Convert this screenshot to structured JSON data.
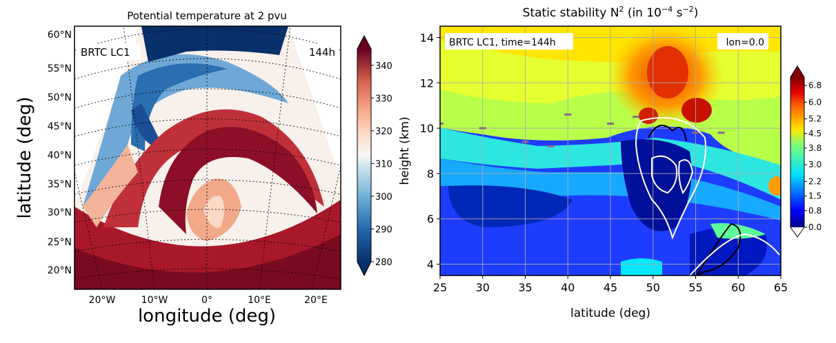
{
  "chart_data": [
    {
      "type": "heatmap",
      "title": "Potential temperature at 2 pvu",
      "xlabel": "longitude (deg)",
      "ylabel": "latitude (deg)",
      "x_ticks": [
        "20°W",
        "10°W",
        "0°",
        "10°E",
        "20°E"
      ],
      "y_ticks": [
        "20°N",
        "25°N",
        "30°N",
        "35°N",
        "40°N",
        "45°N",
        "50°N",
        "55°N",
        "60°N"
      ],
      "xlim": [
        -25,
        25
      ],
      "ylim": [
        17,
        62
      ],
      "annotations": [
        "BRTC LC1",
        "144h"
      ],
      "colorbar": {
        "ticks": [
          "280",
          "290",
          "300",
          "310",
          "320",
          "330",
          "340"
        ],
        "range": [
          280,
          345
        ],
        "extend": "both",
        "colormap": "RdBu_r"
      },
      "projection": "conic, dotted graticule"
    },
    {
      "type": "heatmap",
      "title_main": "Static stability N",
      "title_sup": "2",
      "title_mid": " (in 10",
      "title_exp": "−4",
      "title_unit": " s",
      "title_exp2": "−2",
      "title_end": ")",
      "xlabel": "latitude (deg)",
      "ylabel": "height (km)",
      "x_ticks": [
        "25",
        "30",
        "35",
        "40",
        "45",
        "50",
        "55",
        "60",
        "65"
      ],
      "y_ticks": [
        "4",
        "6",
        "8",
        "10",
        "12",
        "14"
      ],
      "xlim": [
        25,
        65
      ],
      "ylim": [
        3.5,
        14.5
      ],
      "grid": true,
      "annotations": [
        "BRTC LC1, time=144h",
        "lon=0.0"
      ],
      "colorbar": {
        "ticks": [
          "0.0",
          "0.8",
          "1.5",
          "2.2",
          "3.0",
          "3.8",
          "4.5",
          "5.2",
          "6.0",
          "6.8"
        ],
        "range": [
          0,
          7.2
        ],
        "extend": "both",
        "colormap": "jet"
      },
      "tropopause": [
        [
          25,
          10.2
        ],
        [
          30,
          10.0
        ],
        [
          35,
          9.4
        ],
        [
          38,
          9.2
        ],
        [
          40,
          10.6
        ],
        [
          45,
          10.2
        ],
        [
          48,
          10.5
        ],
        [
          55,
          9.8
        ],
        [
          58,
          9.8
        ]
      ]
    }
  ]
}
